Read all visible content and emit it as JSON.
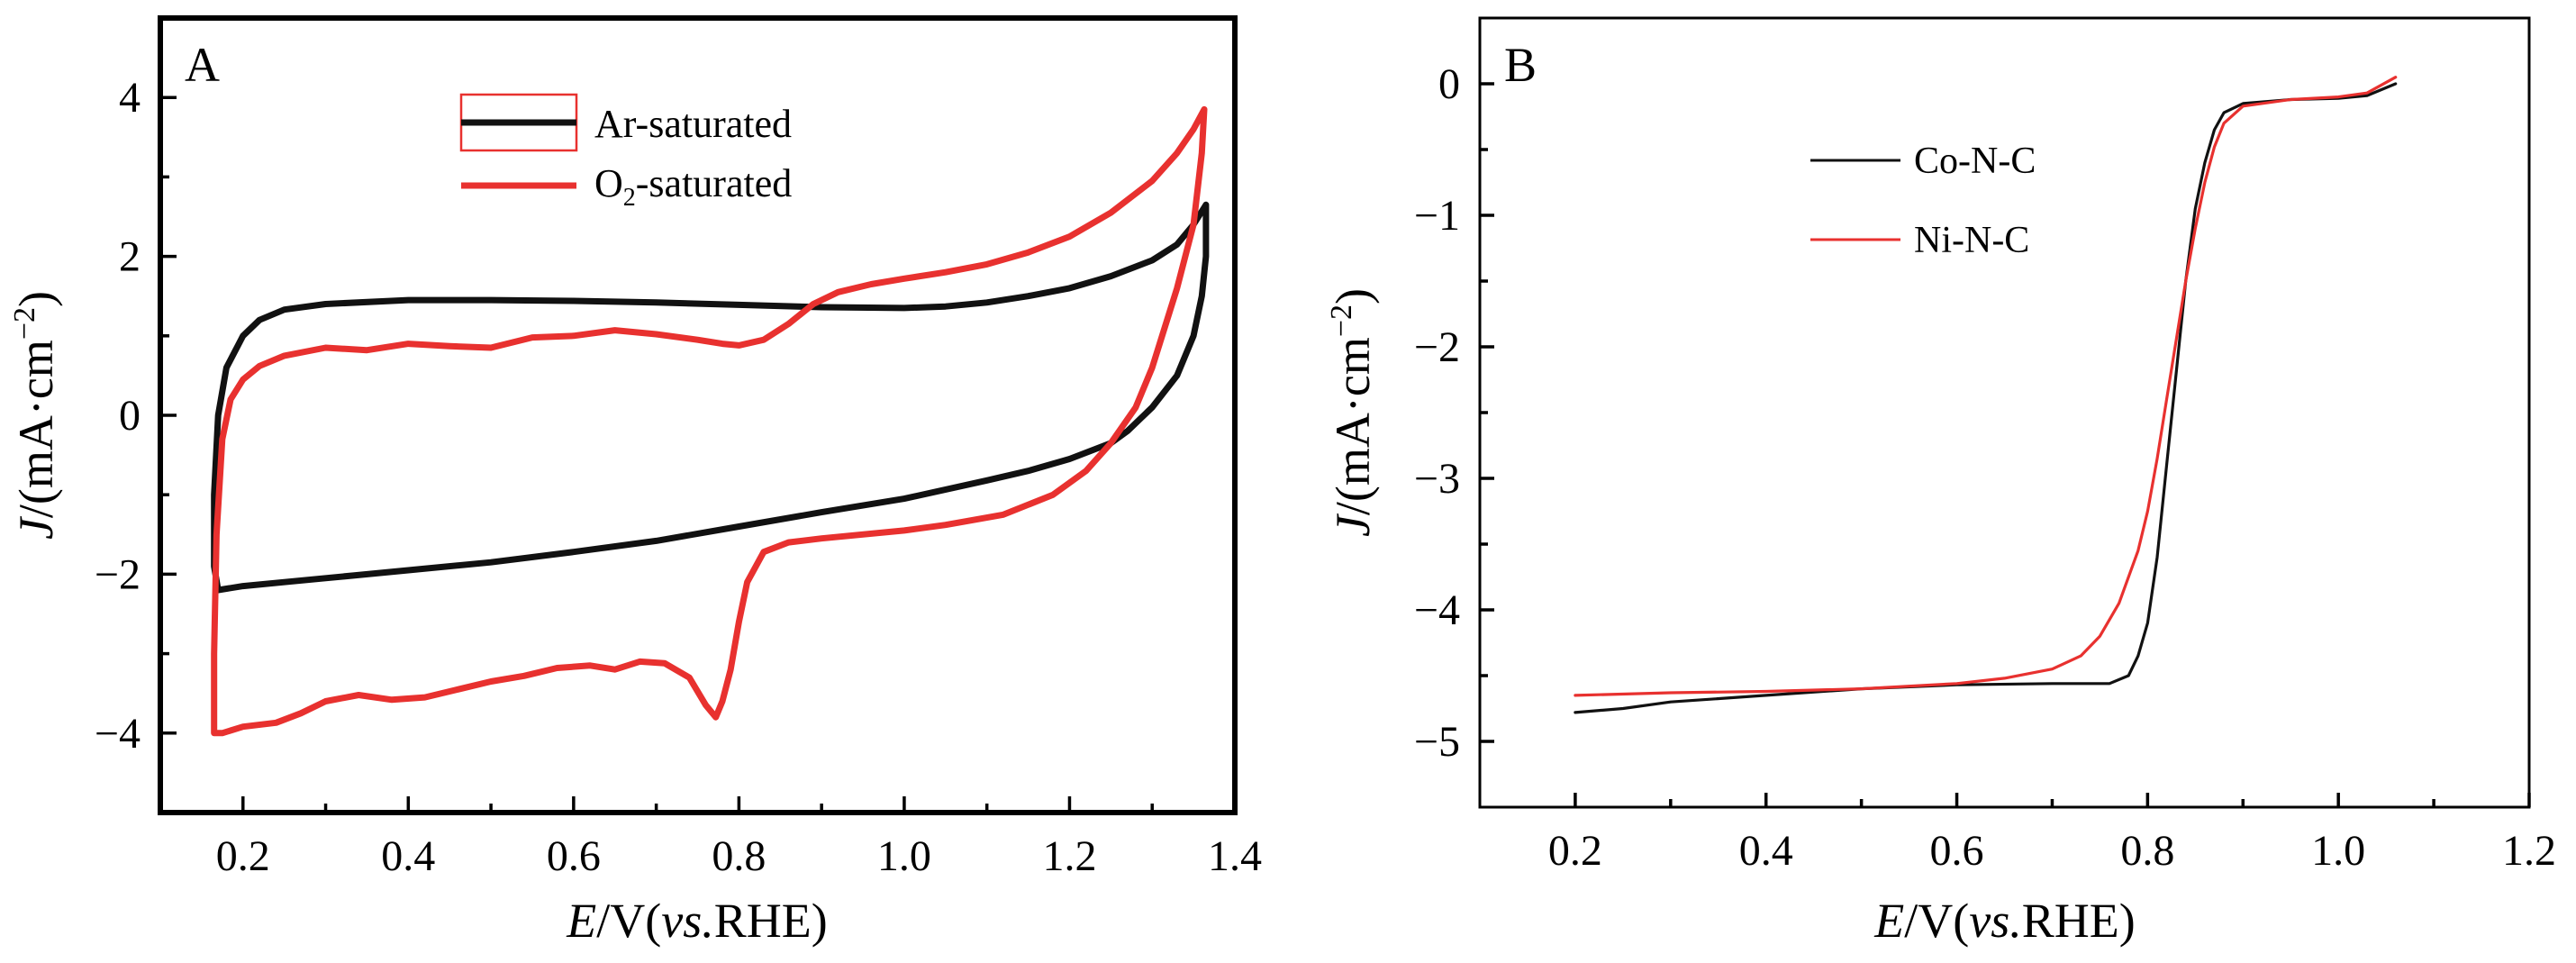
{
  "colors": {
    "black": "#111111",
    "red": "#e8312f",
    "axis": "#000000"
  },
  "chart_data": [
    {
      "type": "line",
      "panel_label": "A",
      "xlabel": {
        "italic": "E",
        "rest": "/V(",
        "italic2": "vs.",
        "tail": "RHE)"
      },
      "ylabel": {
        "italic": "J",
        "rest": "/(mA·cm",
        "sup": "−2",
        "tail": ")"
      },
      "xlim": [
        0.1,
        1.4
      ],
      "ylim": [
        -5,
        5
      ],
      "xticks": [
        0.2,
        0.4,
        0.6,
        0.8,
        1.0,
        1.2,
        1.4
      ],
      "xtick_labels": [
        "0.2",
        "0.4",
        "0.6",
        "0.8",
        "1.0",
        "1.2",
        "1.4"
      ],
      "yticks": [
        -4,
        -2,
        0,
        2,
        4
      ],
      "ytick_labels": [
        "−4",
        "−2",
        "0",
        "2",
        "4"
      ],
      "legend_position": "top-center",
      "series": [
        {
          "name": "Ar-saturated",
          "name_base": "Ar-saturated",
          "color": "black",
          "points": [
            [
              0.17,
              -2.2
            ],
            [
              0.165,
              -1.9
            ],
            [
              0.165,
              -1.0
            ],
            [
              0.17,
              0.0
            ],
            [
              0.18,
              0.6
            ],
            [
              0.2,
              1.0
            ],
            [
              0.22,
              1.2
            ],
            [
              0.25,
              1.33
            ],
            [
              0.3,
              1.4
            ],
            [
              0.4,
              1.45
            ],
            [
              0.5,
              1.45
            ],
            [
              0.6,
              1.44
            ],
            [
              0.7,
              1.42
            ],
            [
              0.8,
              1.39
            ],
            [
              0.9,
              1.36
            ],
            [
              1.0,
              1.35
            ],
            [
              1.05,
              1.37
            ],
            [
              1.1,
              1.42
            ],
            [
              1.15,
              1.5
            ],
            [
              1.2,
              1.6
            ],
            [
              1.25,
              1.75
            ],
            [
              1.3,
              1.95
            ],
            [
              1.33,
              2.15
            ],
            [
              1.35,
              2.4
            ],
            [
              1.365,
              2.65
            ],
            [
              1.365,
              2.0
            ],
            [
              1.36,
              1.5
            ],
            [
              1.35,
              1.0
            ],
            [
              1.33,
              0.5
            ],
            [
              1.3,
              0.1
            ],
            [
              1.27,
              -0.2
            ],
            [
              1.25,
              -0.35
            ],
            [
              1.2,
              -0.55
            ],
            [
              1.15,
              -0.7
            ],
            [
              1.1,
              -0.82
            ],
            [
              1.0,
              -1.05
            ],
            [
              0.9,
              -1.22
            ],
            [
              0.8,
              -1.4
            ],
            [
              0.7,
              -1.58
            ],
            [
              0.6,
              -1.72
            ],
            [
              0.5,
              -1.85
            ],
            [
              0.4,
              -1.95
            ],
            [
              0.3,
              -2.05
            ],
            [
              0.25,
              -2.1
            ],
            [
              0.2,
              -2.15
            ],
            [
              0.17,
              -2.2
            ]
          ]
        },
        {
          "name": "O2-saturated",
          "name_base": "O",
          "name_sub": "2",
          "name_tail": "-saturated",
          "color": "red",
          "points": [
            [
              0.165,
              -4.0
            ],
            [
              0.165,
              -3.0
            ],
            [
              0.168,
              -1.5
            ],
            [
              0.175,
              -0.3
            ],
            [
              0.185,
              0.2
            ],
            [
              0.2,
              0.45
            ],
            [
              0.22,
              0.62
            ],
            [
              0.25,
              0.75
            ],
            [
              0.3,
              0.85
            ],
            [
              0.35,
              0.82
            ],
            [
              0.4,
              0.9
            ],
            [
              0.45,
              0.87
            ],
            [
              0.5,
              0.85
            ],
            [
              0.55,
              0.98
            ],
            [
              0.6,
              1.0
            ],
            [
              0.65,
              1.07
            ],
            [
              0.7,
              1.02
            ],
            [
              0.75,
              0.95
            ],
            [
              0.78,
              0.9
            ],
            [
              0.8,
              0.88
            ],
            [
              0.83,
              0.95
            ],
            [
              0.86,
              1.15
            ],
            [
              0.89,
              1.4
            ],
            [
              0.92,
              1.55
            ],
            [
              0.96,
              1.65
            ],
            [
              1.0,
              1.72
            ],
            [
              1.05,
              1.8
            ],
            [
              1.1,
              1.9
            ],
            [
              1.15,
              2.05
            ],
            [
              1.2,
              2.25
            ],
            [
              1.25,
              2.55
            ],
            [
              1.3,
              2.95
            ],
            [
              1.33,
              3.3
            ],
            [
              1.35,
              3.6
            ],
            [
              1.363,
              3.85
            ],
            [
              1.36,
              3.3
            ],
            [
              1.35,
              2.4
            ],
            [
              1.33,
              1.6
            ],
            [
              1.3,
              0.6
            ],
            [
              1.28,
              0.1
            ],
            [
              1.25,
              -0.35
            ],
            [
              1.22,
              -0.7
            ],
            [
              1.18,
              -1.0
            ],
            [
              1.12,
              -1.25
            ],
            [
              1.05,
              -1.38
            ],
            [
              1.0,
              -1.45
            ],
            [
              0.9,
              -1.55
            ],
            [
              0.86,
              -1.6
            ],
            [
              0.83,
              -1.72
            ],
            [
              0.81,
              -2.1
            ],
            [
              0.8,
              -2.6
            ],
            [
              0.79,
              -3.2
            ],
            [
              0.78,
              -3.6
            ],
            [
              0.772,
              -3.8
            ],
            [
              0.76,
              -3.65
            ],
            [
              0.74,
              -3.3
            ],
            [
              0.71,
              -3.12
            ],
            [
              0.68,
              -3.1
            ],
            [
              0.65,
              -3.2
            ],
            [
              0.62,
              -3.15
            ],
            [
              0.58,
              -3.18
            ],
            [
              0.54,
              -3.28
            ],
            [
              0.5,
              -3.35
            ],
            [
              0.46,
              -3.45
            ],
            [
              0.42,
              -3.55
            ],
            [
              0.38,
              -3.58
            ],
            [
              0.34,
              -3.52
            ],
            [
              0.3,
              -3.6
            ],
            [
              0.27,
              -3.75
            ],
            [
              0.24,
              -3.87
            ],
            [
              0.2,
              -3.92
            ],
            [
              0.175,
              -4.0
            ],
            [
              0.165,
              -4.0
            ]
          ]
        }
      ]
    },
    {
      "type": "line",
      "panel_label": "B",
      "xlabel": {
        "italic": "E",
        "rest": "/V(",
        "italic2": "vs.",
        "tail": "RHE)"
      },
      "ylabel": {
        "italic": "J",
        "rest": "/(mA·cm",
        "sup": "−2",
        "tail": ")"
      },
      "xlim": [
        0.1,
        1.2
      ],
      "ylim": [
        -5.5,
        0.5
      ],
      "xticks": [
        0.2,
        0.4,
        0.6,
        0.8,
        1.0,
        1.2
      ],
      "xtick_labels": [
        "0.2",
        "0.4",
        "0.6",
        "0.8",
        "1.0",
        "1.2"
      ],
      "yticks": [
        -5,
        -4,
        -3,
        -2,
        -1,
        0
      ],
      "ytick_labels": [
        "−5",
        "−4",
        "−3",
        "−2",
        "−1",
        "0"
      ],
      "legend_position": "upper-left",
      "series": [
        {
          "name": "Co-N-C",
          "color": "black",
          "points": [
            [
              0.2,
              -4.78
            ],
            [
              0.25,
              -4.75
            ],
            [
              0.3,
              -4.7
            ],
            [
              0.4,
              -4.65
            ],
            [
              0.5,
              -4.6
            ],
            [
              0.6,
              -4.57
            ],
            [
              0.7,
              -4.56
            ],
            [
              0.76,
              -4.56
            ],
            [
              0.78,
              -4.5
            ],
            [
              0.79,
              -4.35
            ],
            [
              0.8,
              -4.1
            ],
            [
              0.81,
              -3.6
            ],
            [
              0.82,
              -2.9
            ],
            [
              0.83,
              -2.2
            ],
            [
              0.84,
              -1.5
            ],
            [
              0.85,
              -0.95
            ],
            [
              0.86,
              -0.6
            ],
            [
              0.87,
              -0.35
            ],
            [
              0.88,
              -0.22
            ],
            [
              0.9,
              -0.15
            ],
            [
              0.95,
              -0.12
            ],
            [
              1.0,
              -0.11
            ],
            [
              1.03,
              -0.09
            ],
            [
              1.06,
              0.0
            ]
          ]
        },
        {
          "name": "Ni-N-C",
          "color": "red",
          "points": [
            [
              0.2,
              -4.65
            ],
            [
              0.3,
              -4.63
            ],
            [
              0.4,
              -4.62
            ],
            [
              0.5,
              -4.6
            ],
            [
              0.6,
              -4.56
            ],
            [
              0.65,
              -4.52
            ],
            [
              0.7,
              -4.45
            ],
            [
              0.73,
              -4.35
            ],
            [
              0.75,
              -4.2
            ],
            [
              0.77,
              -3.95
            ],
            [
              0.79,
              -3.55
            ],
            [
              0.8,
              -3.25
            ],
            [
              0.81,
              -2.85
            ],
            [
              0.82,
              -2.4
            ],
            [
              0.83,
              -1.95
            ],
            [
              0.84,
              -1.5
            ],
            [
              0.85,
              -1.1
            ],
            [
              0.86,
              -0.75
            ],
            [
              0.87,
              -0.48
            ],
            [
              0.88,
              -0.3
            ],
            [
              0.9,
              -0.17
            ],
            [
              0.95,
              -0.12
            ],
            [
              1.0,
              -0.1
            ],
            [
              1.03,
              -0.07
            ],
            [
              1.06,
              0.05
            ]
          ]
        }
      ]
    }
  ]
}
